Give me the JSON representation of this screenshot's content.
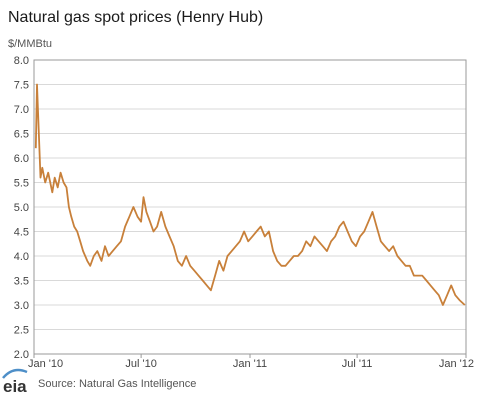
{
  "chart_data": {
    "type": "line",
    "title": "Natural gas spot prices (Henry Hub)",
    "ylabel": "$/MMBtu",
    "xlabel": "",
    "ylim": [
      2.0,
      8.0
    ],
    "y_ticks": [
      "2.0",
      "2.5",
      "3.0",
      "3.5",
      "4.0",
      "4.5",
      "5.0",
      "5.5",
      "6.0",
      "6.5",
      "7.0",
      "7.5",
      "8.0"
    ],
    "x_ticks": [
      "Jan '10",
      "Jul '10",
      "Jan '11",
      "Jul '11",
      "Jan '12"
    ],
    "x_tick_dates": [
      "2010-01-01",
      "2010-07-01",
      "2011-01-01",
      "2011-07-01",
      "2012-01-01"
    ],
    "grid": true,
    "line_color": "#c8803a",
    "series": [
      {
        "x": [
          "2010-01-04",
          "2010-01-06",
          "2010-01-08",
          "2010-01-12",
          "2010-01-15",
          "2010-01-20",
          "2010-01-25",
          "2010-02-01",
          "2010-02-05",
          "2010-02-10",
          "2010-02-15",
          "2010-02-20",
          "2010-02-25",
          "2010-03-01",
          "2010-03-05",
          "2010-03-10",
          "2010-03-15",
          "2010-03-20",
          "2010-03-25",
          "2010-04-01",
          "2010-04-06",
          "2010-04-12",
          "2010-04-18",
          "2010-04-25",
          "2010-05-01",
          "2010-05-07",
          "2010-05-14",
          "2010-05-21",
          "2010-05-28",
          "2010-06-04",
          "2010-06-11",
          "2010-06-18",
          "2010-06-25",
          "2010-07-01",
          "2010-07-05",
          "2010-07-10",
          "2010-07-16",
          "2010-07-22",
          "2010-07-28",
          "2010-08-04",
          "2010-08-11",
          "2010-08-18",
          "2010-08-25",
          "2010-09-01",
          "2010-09-08",
          "2010-09-15",
          "2010-09-22",
          "2010-09-29",
          "2010-10-06",
          "2010-10-13",
          "2010-10-20",
          "2010-10-27",
          "2010-11-03",
          "2010-11-10",
          "2010-11-17",
          "2010-11-24",
          "2010-12-01",
          "2010-12-08",
          "2010-12-15",
          "2010-12-22",
          "2010-12-29",
          "2011-01-05",
          "2011-01-12",
          "2011-01-19",
          "2011-01-26",
          "2011-02-02",
          "2011-02-09",
          "2011-02-16",
          "2011-02-23",
          "2011-03-02",
          "2011-03-09",
          "2011-03-16",
          "2011-03-23",
          "2011-03-30",
          "2011-04-06",
          "2011-04-13",
          "2011-04-20",
          "2011-04-27",
          "2011-05-04",
          "2011-05-11",
          "2011-05-18",
          "2011-05-25",
          "2011-06-01",
          "2011-06-08",
          "2011-06-15",
          "2011-06-22",
          "2011-06-29",
          "2011-07-06",
          "2011-07-13",
          "2011-07-20",
          "2011-07-27",
          "2011-08-03",
          "2011-08-10",
          "2011-08-17",
          "2011-08-24",
          "2011-08-31",
          "2011-09-07",
          "2011-09-14",
          "2011-09-21",
          "2011-09-28",
          "2011-10-05",
          "2011-10-12",
          "2011-10-19",
          "2011-10-26",
          "2011-11-02",
          "2011-11-09",
          "2011-11-16",
          "2011-11-23",
          "2011-11-30",
          "2011-12-07",
          "2011-12-14",
          "2011-12-21",
          "2011-12-30"
        ],
        "values": [
          6.2,
          7.5,
          6.9,
          5.6,
          5.8,
          5.5,
          5.7,
          5.3,
          5.6,
          5.4,
          5.7,
          5.5,
          5.4,
          5.0,
          4.8,
          4.6,
          4.5,
          4.3,
          4.1,
          3.9,
          3.8,
          4.0,
          4.1,
          3.9,
          4.2,
          4.0,
          4.1,
          4.2,
          4.3,
          4.6,
          4.8,
          5.0,
          4.8,
          4.7,
          5.2,
          4.9,
          4.7,
          4.5,
          4.6,
          4.9,
          4.6,
          4.4,
          4.2,
          3.9,
          3.8,
          4.0,
          3.8,
          3.7,
          3.6,
          3.5,
          3.4,
          3.3,
          3.6,
          3.9,
          3.7,
          4.0,
          4.1,
          4.2,
          4.3,
          4.5,
          4.3,
          4.4,
          4.5,
          4.6,
          4.4,
          4.5,
          4.1,
          3.9,
          3.8,
          3.8,
          3.9,
          4.0,
          4.0,
          4.1,
          4.3,
          4.2,
          4.4,
          4.3,
          4.2,
          4.1,
          4.3,
          4.4,
          4.6,
          4.7,
          4.5,
          4.3,
          4.2,
          4.4,
          4.5,
          4.7,
          4.9,
          4.6,
          4.3,
          4.2,
          4.1,
          4.2,
          4.0,
          3.9,
          3.8,
          3.8,
          3.6,
          3.6,
          3.6,
          3.5,
          3.4,
          3.3,
          3.2,
          3.0,
          3.2,
          3.4,
          3.2,
          3.1,
          3.0
        ]
      }
    ]
  },
  "footer": {
    "logo_text": "eia",
    "source": "Source: Natural Gas Intelligence"
  },
  "colors": {
    "line": "#c8803a",
    "grid": "#d9d9d9",
    "frame": "#9a9a9a",
    "logo_accent": "#4e8fc8"
  }
}
